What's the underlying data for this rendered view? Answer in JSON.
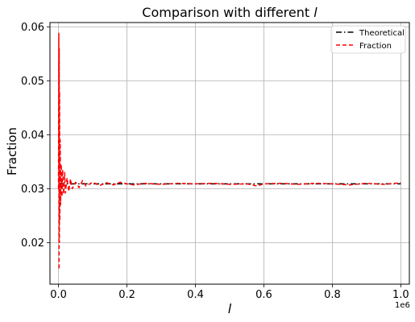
{
  "chart_data": {
    "type": "line",
    "title_prefix": "Comparison with different ",
    "title_var": "l",
    "xlabel": "l",
    "ylabel": "Fraction",
    "x_offset_label": "1e6",
    "xlim": [
      -25000,
      1025000
    ],
    "ylim": [
      0.0123,
      0.0608
    ],
    "x_ticks": [
      0,
      200000,
      400000,
      600000,
      800000,
      1000000
    ],
    "x_tick_labels": [
      "0.0",
      "0.2",
      "0.4",
      "0.6",
      "0.8",
      "1.0"
    ],
    "y_ticks": [
      0.02,
      0.03,
      0.04,
      0.05,
      0.06
    ],
    "y_tick_labels": [
      "0.02",
      "0.03",
      "0.04",
      "0.05",
      "0.06"
    ],
    "grid": true,
    "legend_position": "top-right",
    "series": [
      {
        "name": "Theoretical",
        "color": "#000000",
        "style": "dashdot",
        "x": [
          0,
          1000000
        ],
        "y": [
          0.0309,
          0.0309
        ]
      },
      {
        "name": "Fraction",
        "color": "#ff0000",
        "style": "dashed",
        "x": [
          0,
          1000,
          1500,
          2000,
          2500,
          3000,
          4000,
          5000,
          6000,
          8000,
          10000,
          12000,
          15000,
          18000,
          20000,
          25000,
          30000,
          35000,
          40000,
          50000,
          60000,
          70000,
          80000,
          100000,
          120000,
          140000,
          160000,
          180000,
          200000,
          220000,
          250000,
          300000,
          350000,
          400000,
          450000,
          500000,
          550000,
          580000,
          600000,
          650000,
          700000,
          750000,
          800000,
          850000,
          900000,
          950000,
          1000000
        ],
        "y": [
          0.03,
          0.0588,
          0.015,
          0.056,
          0.02,
          0.048,
          0.024,
          0.039,
          0.027,
          0.0345,
          0.0285,
          0.0335,
          0.029,
          0.033,
          0.0292,
          0.032,
          0.0295,
          0.0318,
          0.03,
          0.0312,
          0.0302,
          0.0315,
          0.0305,
          0.0312,
          0.0306,
          0.0311,
          0.0307,
          0.0312,
          0.0309,
          0.0307,
          0.031,
          0.0308,
          0.031,
          0.0309,
          0.031,
          0.0308,
          0.0309,
          0.0305,
          0.0309,
          0.031,
          0.0308,
          0.031,
          0.0309,
          0.0307,
          0.031,
          0.0308,
          0.0311
        ]
      }
    ]
  }
}
